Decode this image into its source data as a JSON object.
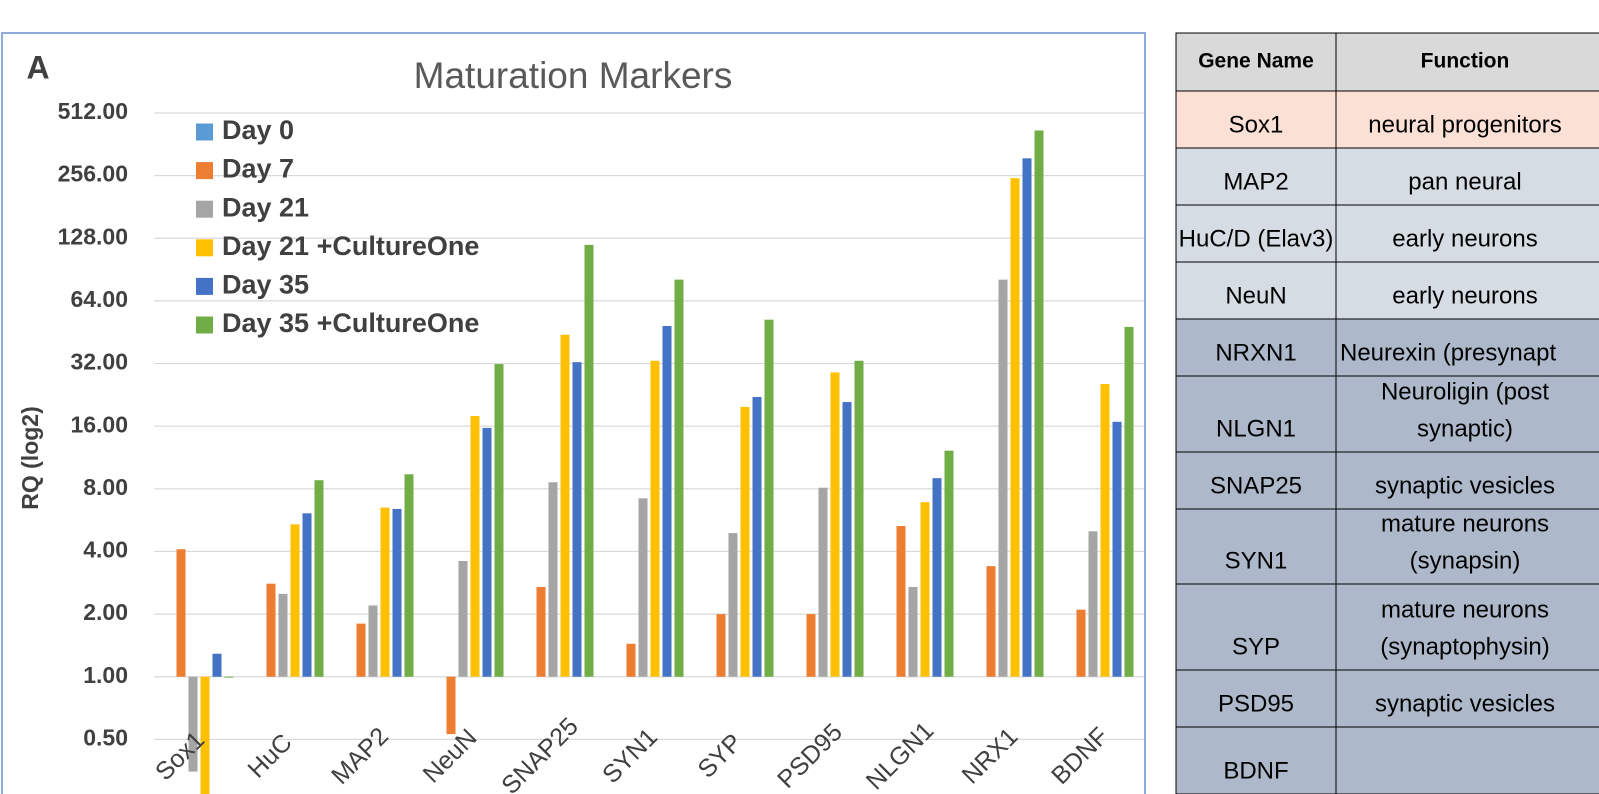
{
  "chart_data": {
    "type": "bar",
    "panel_label": "A",
    "title": "Maturation Markers",
    "y_label": "RQ (log2)",
    "log_scale": true,
    "log_base": 2,
    "grid": true,
    "bar_base": 1,
    "categories": [
      "Sox1",
      "HuC",
      "MAP2",
      "NeuN",
      "SNAP25",
      "SYN1",
      "SYP",
      "PSD95",
      "NLGN1",
      "NRX1",
      "BDNF"
    ],
    "series": [
      {
        "name": "Day 0",
        "color": "#5b9bd5",
        "values": [
          1,
          1,
          1,
          1,
          1,
          1,
          1,
          1,
          1,
          1,
          1
        ]
      },
      {
        "name": "Day 7",
        "color": "#ed7d31",
        "values": [
          4.1,
          2.8,
          1.8,
          0.53,
          2.7,
          1.44,
          2.0,
          2.0,
          5.3,
          3.4,
          2.1
        ]
      },
      {
        "name": "Day 21",
        "color": "#a5a5a5",
        "values": [
          0.35,
          2.5,
          2.2,
          3.6,
          8.6,
          7.2,
          4.9,
          8.1,
          2.7,
          81,
          5.0
        ]
      },
      {
        "name": "Day 21 +CultureOne",
        "color": "#ffc000",
        "values": [
          0.2,
          5.4,
          6.5,
          17.9,
          44,
          33,
          19.8,
          29,
          6.9,
          249,
          25.5
        ]
      },
      {
        "name": "Day 35",
        "color": "#4472c4",
        "values": [
          1.29,
          6.1,
          6.4,
          15.7,
          32.5,
          48.5,
          22.1,
          20.9,
          9.0,
          310,
          16.8
        ]
      },
      {
        "name": "Day 35 +CultureOne",
        "color": "#70ad47",
        "values": [
          0.99,
          8.8,
          9.4,
          31.8,
          119,
          81,
          52,
          33,
          12.2,
          422,
          48
        ]
      }
    ],
    "ylim": [
      0.25,
      512
    ],
    "yticks": [
      {
        "value": 512,
        "label": "512.00"
      },
      {
        "value": 256,
        "label": "256.00"
      },
      {
        "value": 128,
        "label": "128.00"
      },
      {
        "value": 64,
        "label": "64.00"
      },
      {
        "value": 32,
        "label": "32.00"
      },
      {
        "value": 16,
        "label": "16.00"
      },
      {
        "value": 8,
        "label": "8.00"
      },
      {
        "value": 4,
        "label": "4.00"
      },
      {
        "value": 2,
        "label": "2.00"
      },
      {
        "value": 1,
        "label": "1.00"
      },
      {
        "value": 0.5,
        "label": "0.50"
      }
    ]
  },
  "table": {
    "header": [
      "Gene Name",
      "Function"
    ],
    "rows": [
      {
        "gene": "Sox1",
        "function": [
          "neural progenitors"
        ]
      },
      {
        "gene": "MAP2",
        "function": [
          "pan neural"
        ]
      },
      {
        "gene": "HuC/D (Elav3)",
        "function": [
          "early neurons"
        ]
      },
      {
        "gene": "NeuN",
        "function": [
          "early neurons"
        ]
      },
      {
        "gene": "NRXN1",
        "function": [
          "Neurexin (presynapt"
        ]
      },
      {
        "gene": "NLGN1",
        "function": [
          "Neuroligin (post",
          "synaptic)"
        ]
      },
      {
        "gene": "SNAP25",
        "function": [
          "synaptic vesicles"
        ]
      },
      {
        "gene": "SYN1",
        "function": [
          "mature neurons",
          "(synapsin)"
        ]
      },
      {
        "gene": "SYP",
        "function": [
          "mature neurons",
          "(synaptophysin)"
        ]
      },
      {
        "gene": "PSD95",
        "function": [
          "synaptic vesicles"
        ]
      },
      {
        "gene": "BDNF",
        "function": []
      }
    ]
  }
}
